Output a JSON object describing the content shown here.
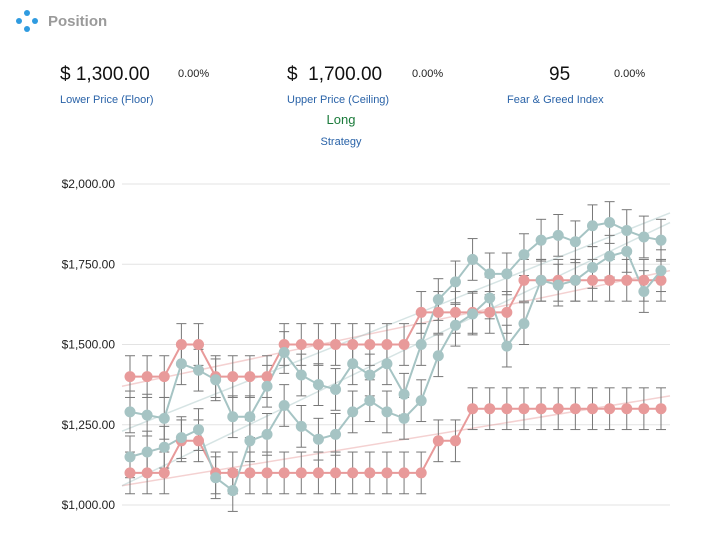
{
  "header": {
    "title": "Position",
    "logo_icon": "dots-diamond-icon"
  },
  "metrics": {
    "floor": {
      "value": "$ 1,300.00",
      "change": "0.00%",
      "label": "Lower Price (Floor)"
    },
    "ceiling": {
      "value": "$  1,700.00",
      "change": "0.00%",
      "label": "Upper Price (Ceiling)"
    },
    "fear_greed": {
      "value": "95",
      "change": "0.00%",
      "label": "Fear & Greed Index"
    }
  },
  "strategy": {
    "value": "Long",
    "label": "Strategy"
  },
  "colors": {
    "red": "#e89a9a",
    "teal": "#a6c4c4",
    "error": "#777777",
    "grid": "#e3e3e3"
  },
  "chart_data": {
    "type": "line",
    "ylim": [
      1000,
      2000
    ],
    "yticks": [
      "$1,000.00",
      "$1,250.00",
      "$1,500.00",
      "$1,750.00",
      "$2,000.00"
    ],
    "ytick_values": [
      1000,
      1250,
      1500,
      1750,
      2000
    ],
    "error_margin": 65,
    "series": [
      {
        "color": "red",
        "values": [
          1400,
          1400,
          1400,
          1500,
          1500,
          1400,
          1400,
          1400,
          1400,
          1500,
          1500,
          1500,
          1500,
          1500,
          1500,
          1500,
          1500,
          1600,
          1600,
          1600,
          1600,
          1600,
          1600,
          1700,
          1700,
          1700,
          1700,
          1700,
          1700,
          1700,
          1700,
          1700
        ]
      },
      {
        "color": "red",
        "values": [
          1100,
          1100,
          1100,
          1200,
          1200,
          1100,
          1100,
          1100,
          1100,
          1100,
          1100,
          1100,
          1100,
          1100,
          1100,
          1100,
          1100,
          1100,
          1200,
          1200,
          1300,
          1300,
          1300,
          1300,
          1300,
          1300,
          1300,
          1300,
          1300,
          1300,
          1300,
          1300
        ]
      },
      {
        "color": "teal",
        "values": [
          1290,
          1280,
          1270,
          1440,
          1420,
          1390,
          1275,
          1275,
          1370,
          1475,
          1405,
          1375,
          1360,
          1440,
          1405,
          1440,
          1345,
          1500,
          1640,
          1695,
          1765,
          1720,
          1720,
          1780,
          1825,
          1840,
          1820,
          1870,
          1880,
          1855,
          1835,
          1825
        ]
      },
      {
        "color": "teal",
        "values": [
          1150,
          1165,
          1180,
          1210,
          1235,
          1085,
          1045,
          1200,
          1220,
          1310,
          1245,
          1205,
          1220,
          1290,
          1325,
          1290,
          1270,
          1325,
          1465,
          1560,
          1595,
          1645,
          1495,
          1565,
          1700,
          1685,
          1700,
          1740,
          1775,
          1790,
          1665,
          1730
        ]
      }
    ],
    "trends": [
      {
        "color": "red",
        "from": 1370,
        "to": 1730
      },
      {
        "color": "red",
        "from": 1060,
        "to": 1340
      },
      {
        "color": "teal",
        "from": 1230,
        "to": 1910
      },
      {
        "color": "teal",
        "from": 1060,
        "to": 1880
      }
    ]
  }
}
